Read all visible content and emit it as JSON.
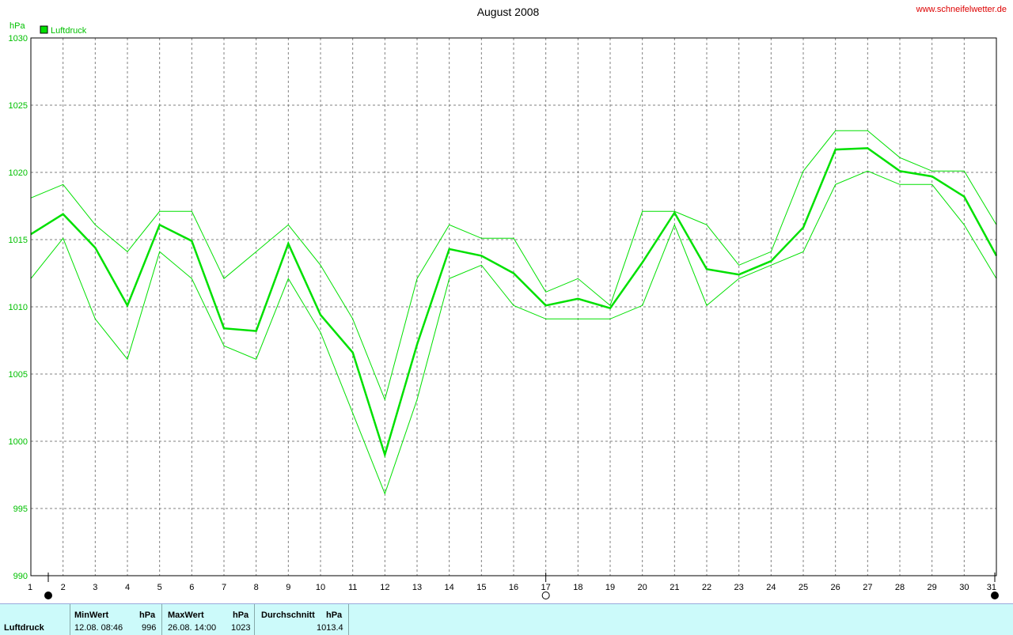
{
  "chart_data": {
    "type": "line",
    "title": "August 2008",
    "source": "www.schneifelwetter.de",
    "ylabel": "hPa",
    "ylim": [
      990,
      1030
    ],
    "yticks": [
      990,
      995,
      1000,
      1005,
      1010,
      1015,
      1020,
      1025,
      1030
    ],
    "x": [
      1,
      2,
      3,
      4,
      5,
      6,
      7,
      8,
      9,
      10,
      11,
      12,
      13,
      14,
      15,
      16,
      17,
      18,
      19,
      20,
      21,
      22,
      23,
      24,
      25,
      26,
      27,
      28,
      29,
      30,
      31
    ],
    "grid": true,
    "legend_position": "top-left",
    "series": [
      {
        "name": "Luftdruck",
        "color": "#00e000",
        "values": [
          1015.4,
          1016.9,
          1014.4,
          1010.1,
          1016.1,
          1014.9,
          1008.4,
          1008.2,
          1014.7,
          1009.4,
          1006.6,
          999.0,
          1007.2,
          1014.3,
          1013.8,
          1012.5,
          1010.1,
          1010.6,
          1009.9,
          1013.3,
          1017.0,
          1012.8,
          1012.4,
          1013.4,
          1015.9,
          1021.7,
          1021.8,
          1020.1,
          1019.7,
          1018.2,
          1013.8
        ]
      },
      {
        "name": "",
        "values": [
          1018.1,
          1019.1,
          1016.1,
          1014.1,
          1017.1,
          1017.1,
          1012.1,
          1014.1,
          1016.1,
          1013.1,
          1009.1,
          1003.1,
          1012.1,
          1016.1,
          1015.1,
          1015.1,
          1011.1,
          1012.1,
          1010.1,
          1017.1,
          1017.1,
          1016.1,
          1013.1,
          1014.1,
          1020.1,
          1023.1,
          1023.1,
          1021.1,
          1020.1,
          1020.1,
          1016.1
        ]
      },
      {
        "name": "",
        "values": [
          1012.1,
          1015.1,
          1009.1,
          1006.1,
          1014.1,
          1012.1,
          1007.1,
          1006.1,
          1012.1,
          1008.1,
          1002.1,
          996.1,
          1003.1,
          1012.1,
          1013.1,
          1010.1,
          1009.1,
          1009.1,
          1009.1,
          1010.1,
          1016.1,
          1010.1,
          1012.1,
          1013.1,
          1014.1,
          1019.1,
          1020.1,
          1019.1,
          1019.1,
          1016.1,
          1012.1
        ]
      }
    ],
    "moon_phase_markers": [
      {
        "day": 1,
        "phase": "new-moon"
      },
      {
        "day": 17,
        "phase": "full-moon"
      },
      {
        "day": 31,
        "phase": "new-moon"
      }
    ]
  },
  "footer": {
    "row_label": "Luftdruck",
    "min_header": "MinWert",
    "min_unit": "hPa",
    "min_time": "12.08.  08:46",
    "min_value": "996",
    "max_header": "MaxWert",
    "max_unit": "hPa",
    "max_time": "26.08.  14:00",
    "max_value": "1023",
    "avg_header": "Durchschnitt",
    "avg_unit": "hPa",
    "avg_value": "1013.4"
  },
  "colors": {
    "series_main": "#00e000",
    "series_band": "#00e000",
    "grid": "#808080",
    "url": "#dd0000",
    "footer_bg": "#ccfafa"
  }
}
